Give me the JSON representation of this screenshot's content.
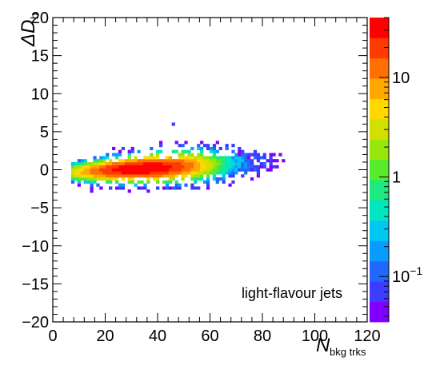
{
  "chart_data": {
    "type": "heatmap",
    "annotation": "light-flavour jets",
    "xlabel": {
      "main": "N",
      "sub": "bkg trks"
    },
    "ylabel": {
      "main": "ΔD",
      "sub": "b"
    },
    "xlim": [
      0,
      120
    ],
    "ylim": [
      -20,
      20
    ],
    "x_ticks": [
      "0",
      "20",
      "40",
      "60",
      "80",
      "100",
      "120"
    ],
    "y_ticks": [
      "−20",
      "−15",
      "−10",
      "−5",
      "0",
      "5",
      "10",
      "15",
      "20"
    ],
    "x_tick_values": [
      0,
      20,
      40,
      60,
      80,
      100,
      120
    ],
    "y_tick_values": [
      -20,
      -15,
      -10,
      -5,
      0,
      5,
      10,
      15,
      20
    ],
    "z_scale": "log",
    "zlim": [
      0.035,
      40
    ],
    "z_ticks": [
      {
        "value": 10,
        "base": "10",
        "exp": ""
      },
      {
        "value": 1,
        "base": "1",
        "exp": ""
      },
      {
        "value": 0.1,
        "base": "10",
        "exp": "−1"
      }
    ],
    "colormap": [
      "#7f00ff",
      "#3d3dff",
      "#2268ff",
      "#0a9bff",
      "#00c8f0",
      "#00e6c0",
      "#1ee880",
      "#58ea2c",
      "#98e60c",
      "#d2e000",
      "#ffd800",
      "#ffa800",
      "#ff7000",
      "#ff3a00",
      "#ff0000"
    ],
    "distribution": {
      "description": "dense band with maximum near N=25-40, Delta D_b about 0, slight upward slope, sparse scatter to N~95",
      "core_centers": [
        [
          12,
          -0.4
        ],
        [
          20,
          -0.3
        ],
        [
          28,
          -0.1
        ],
        [
          36,
          0.0
        ],
        [
          44,
          0.2
        ],
        [
          52,
          0.4
        ],
        [
          60,
          0.6
        ],
        [
          68,
          0.8
        ],
        [
          76,
          1.0
        ],
        [
          84,
          1.1
        ],
        [
          92,
          1.2
        ]
      ],
      "peak_value": 40
    }
  }
}
